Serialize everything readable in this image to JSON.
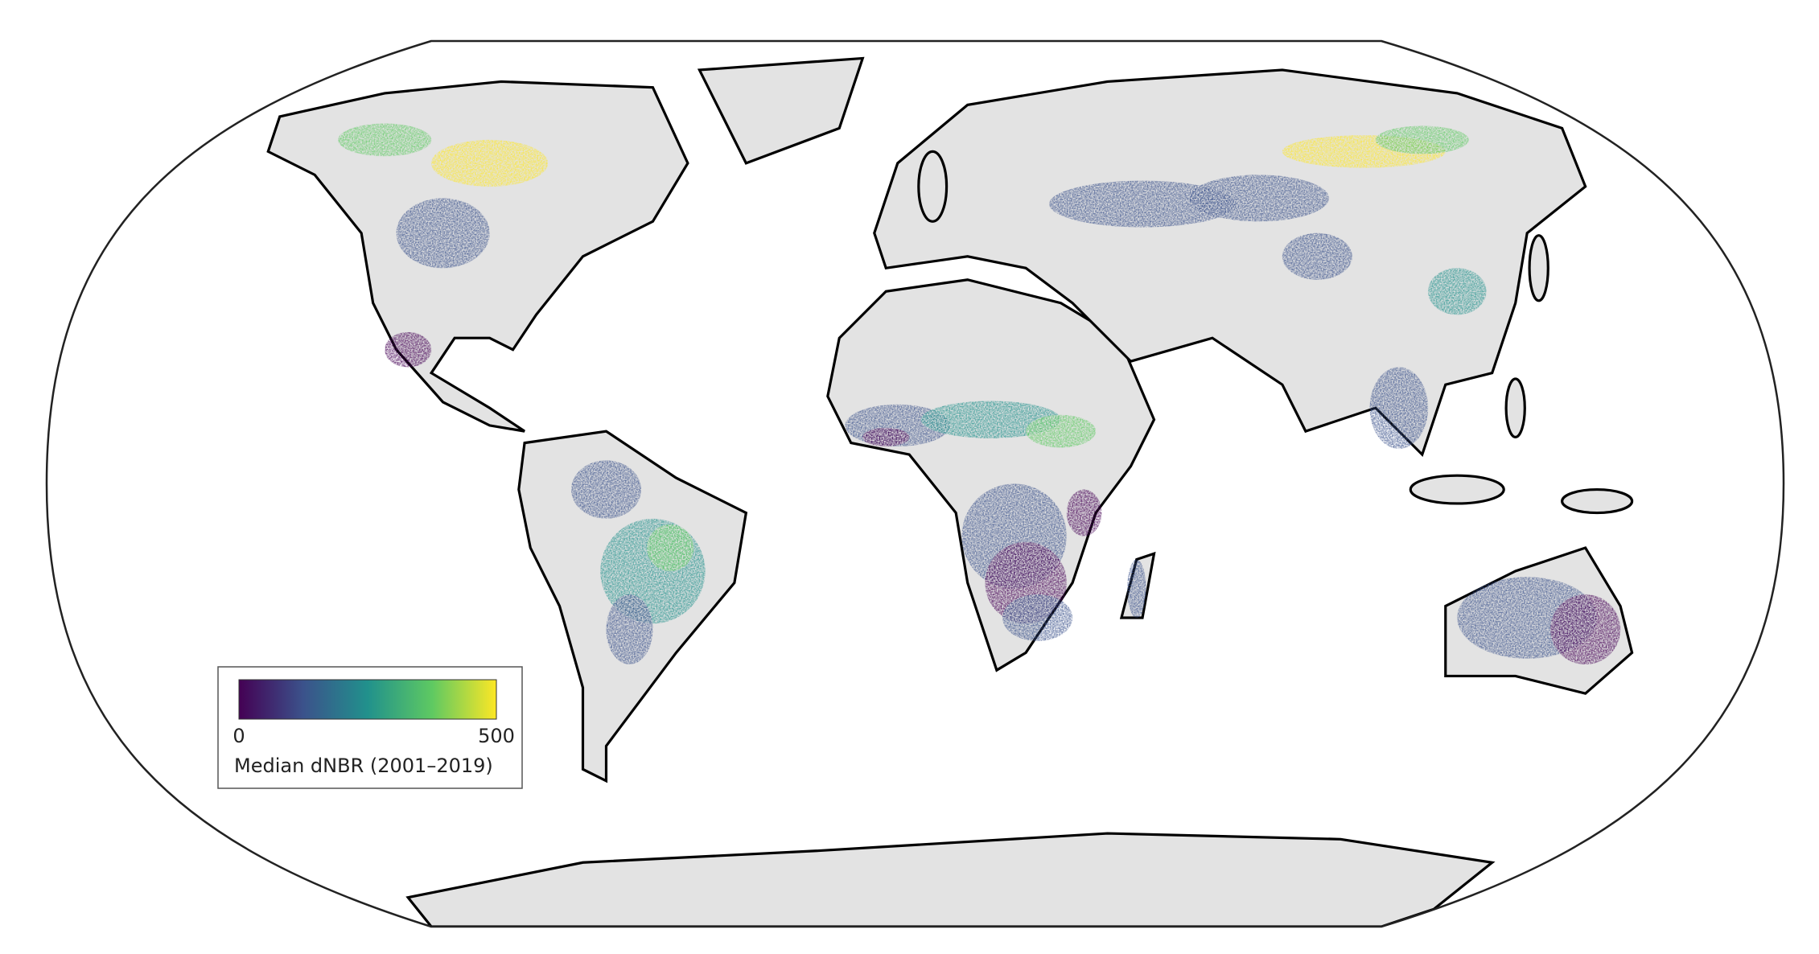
{
  "map": {
    "colorbar": {
      "min": 0,
      "max": 500,
      "label": "Median dNBR (2001–2019)",
      "colors": [
        "#440154",
        "#3b528b",
        "#21918c",
        "#5ec962",
        "#fde725"
      ]
    },
    "land_color": "#e3e3e3"
  }
}
